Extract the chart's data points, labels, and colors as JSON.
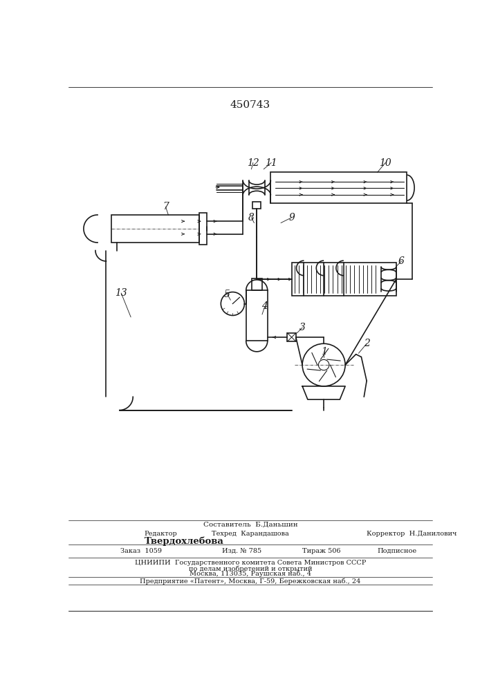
{
  "title": "450743",
  "lc": "#1a1a1a",
  "footer": {
    "sestavitel": "Составитель  Б.Даньшин",
    "redaktor_label": "Редактор",
    "tehred": "Техред  Карандашова",
    "korrektor": "Корректор  Н.Данилович",
    "redaktor_name": "Твердохлебова",
    "zakaz": "Заказ  1059",
    "izd": "Изд. № 785",
    "tirazh": "Тираж 506",
    "podpisnoe": "Подписное",
    "org1": "ЦНИИПИ  Государственного комитета Совета Министров СССР",
    "org2": "по делам изобретений и открытий",
    "org3": "Москва, 113035, Раушская наб., 4",
    "enterprise": "Предприятие «Патент», Москва, Г-59, Бережковская наб., 24"
  }
}
